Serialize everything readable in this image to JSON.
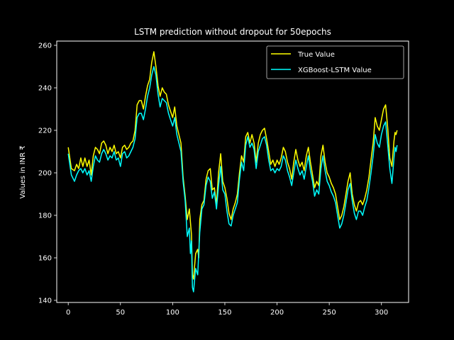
{
  "chart_data": {
    "type": "line",
    "title": "LSTM prediction without dropout for 50epochs",
    "xlabel": "",
    "ylabel": "Values in INR ₹",
    "xlim": [
      -11,
      326
    ],
    "ylim": [
      139,
      262
    ],
    "xticks": [
      0,
      50,
      100,
      150,
      200,
      250,
      300
    ],
    "yticks": [
      140,
      160,
      180,
      200,
      220,
      240,
      260
    ],
    "grid": false,
    "legend_position": "top-right",
    "background": "#000000",
    "axis_color": "#ffffff",
    "series": [
      {
        "name": "True Value",
        "color": "#ffff00",
        "points": [
          [
            0,
            212
          ],
          [
            3,
            202
          ],
          [
            6,
            201
          ],
          [
            8,
            204
          ],
          [
            10,
            202
          ],
          [
            12,
            207
          ],
          [
            14,
            203
          ],
          [
            16,
            207
          ],
          [
            18,
            203
          ],
          [
            20,
            206
          ],
          [
            22,
            199
          ],
          [
            24,
            208
          ],
          [
            26,
            212
          ],
          [
            28,
            211
          ],
          [
            30,
            209
          ],
          [
            32,
            214
          ],
          [
            34,
            215
          ],
          [
            36,
            213
          ],
          [
            38,
            209
          ],
          [
            40,
            212
          ],
          [
            42,
            210
          ],
          [
            44,
            213
          ],
          [
            46,
            209
          ],
          [
            48,
            210
          ],
          [
            50,
            207
          ],
          [
            52,
            212
          ],
          [
            54,
            213
          ],
          [
            56,
            211
          ],
          [
            58,
            212
          ],
          [
            60,
            214
          ],
          [
            62,
            215
          ],
          [
            64,
            220
          ],
          [
            66,
            232
          ],
          [
            68,
            234
          ],
          [
            70,
            234
          ],
          [
            72,
            230
          ],
          [
            74,
            236
          ],
          [
            76,
            241
          ],
          [
            78,
            244
          ],
          [
            80,
            252
          ],
          [
            82,
            257
          ],
          [
            84,
            250
          ],
          [
            86,
            241
          ],
          [
            88,
            236
          ],
          [
            90,
            240
          ],
          [
            92,
            238
          ],
          [
            94,
            237
          ],
          [
            96,
            232
          ],
          [
            98,
            229
          ],
          [
            100,
            226
          ],
          [
            102,
            231
          ],
          [
            104,
            222
          ],
          [
            106,
            218
          ],
          [
            108,
            214
          ],
          [
            110,
            198
          ],
          [
            112,
            189
          ],
          [
            114,
            178
          ],
          [
            116,
            183
          ],
          [
            118,
            171
          ],
          [
            119,
            152
          ],
          [
            120,
            150
          ],
          [
            122,
            162
          ],
          [
            124,
            164
          ],
          [
            125,
            160
          ],
          [
            126,
            178
          ],
          [
            128,
            185
          ],
          [
            130,
            187
          ],
          [
            132,
            197
          ],
          [
            134,
            201
          ],
          [
            136,
            202
          ],
          [
            138,
            192
          ],
          [
            140,
            193
          ],
          [
            142,
            185
          ],
          [
            144,
            200
          ],
          [
            146,
            209
          ],
          [
            148,
            196
          ],
          [
            150,
            193
          ],
          [
            152,
            188
          ],
          [
            154,
            181
          ],
          [
            156,
            178
          ],
          [
            158,
            183
          ],
          [
            160,
            186
          ],
          [
            162,
            190
          ],
          [
            164,
            200
          ],
          [
            166,
            208
          ],
          [
            168,
            205
          ],
          [
            170,
            217
          ],
          [
            172,
            219
          ],
          [
            174,
            214
          ],
          [
            176,
            218
          ],
          [
            178,
            214
          ],
          [
            180,
            205
          ],
          [
            182,
            214
          ],
          [
            184,
            218
          ],
          [
            186,
            220
          ],
          [
            188,
            221
          ],
          [
            190,
            216
          ],
          [
            192,
            210
          ],
          [
            194,
            204
          ],
          [
            196,
            206
          ],
          [
            198,
            203
          ],
          [
            200,
            206
          ],
          [
            202,
            204
          ],
          [
            204,
            207
          ],
          [
            206,
            212
          ],
          [
            208,
            210
          ],
          [
            210,
            205
          ],
          [
            212,
            202
          ],
          [
            214,
            197
          ],
          [
            216,
            205
          ],
          [
            218,
            211
          ],
          [
            220,
            206
          ],
          [
            222,
            203
          ],
          [
            224,
            205
          ],
          [
            226,
            201
          ],
          [
            228,
            208
          ],
          [
            230,
            212
          ],
          [
            232,
            205
          ],
          [
            234,
            199
          ],
          [
            236,
            193
          ],
          [
            238,
            196
          ],
          [
            240,
            194
          ],
          [
            242,
            208
          ],
          [
            244,
            213
          ],
          [
            246,
            205
          ],
          [
            248,
            200
          ],
          [
            250,
            198
          ],
          [
            252,
            195
          ],
          [
            254,
            193
          ],
          [
            256,
            190
          ],
          [
            258,
            184
          ],
          [
            260,
            178
          ],
          [
            262,
            180
          ],
          [
            264,
            184
          ],
          [
            266,
            190
          ],
          [
            268,
            196
          ],
          [
            270,
            200
          ],
          [
            272,
            190
          ],
          [
            274,
            185
          ],
          [
            276,
            182
          ],
          [
            278,
            186
          ],
          [
            280,
            187
          ],
          [
            282,
            185
          ],
          [
            284,
            188
          ],
          [
            286,
            192
          ],
          [
            288,
            198
          ],
          [
            290,
            206
          ],
          [
            292,
            214
          ],
          [
            294,
            226
          ],
          [
            296,
            222
          ],
          [
            298,
            220
          ],
          [
            300,
            225
          ],
          [
            302,
            230
          ],
          [
            304,
            232
          ],
          [
            306,
            221
          ],
          [
            308,
            207
          ],
          [
            310,
            203
          ],
          [
            312,
            215
          ],
          [
            313,
            219
          ],
          [
            314,
            218
          ],
          [
            315,
            220
          ]
        ]
      },
      {
        "name": "XGBoost-LSTM Value",
        "color": "#00ffff",
        "points": [
          [
            0,
            209
          ],
          [
            3,
            199
          ],
          [
            6,
            196
          ],
          [
            8,
            199
          ],
          [
            10,
            201
          ],
          [
            12,
            202
          ],
          [
            14,
            200
          ],
          [
            16,
            202
          ],
          [
            18,
            199
          ],
          [
            20,
            201
          ],
          [
            22,
            196
          ],
          [
            24,
            203
          ],
          [
            26,
            208
          ],
          [
            28,
            206
          ],
          [
            30,
            205
          ],
          [
            32,
            209
          ],
          [
            34,
            211
          ],
          [
            36,
            209
          ],
          [
            38,
            206
          ],
          [
            40,
            208
          ],
          [
            42,
            207
          ],
          [
            44,
            210
          ],
          [
            46,
            206
          ],
          [
            48,
            207
          ],
          [
            50,
            203
          ],
          [
            52,
            209
          ],
          [
            54,
            210
          ],
          [
            56,
            207
          ],
          [
            58,
            208
          ],
          [
            60,
            210
          ],
          [
            62,
            212
          ],
          [
            64,
            216
          ],
          [
            66,
            226
          ],
          [
            68,
            228
          ],
          [
            70,
            228
          ],
          [
            72,
            225
          ],
          [
            74,
            230
          ],
          [
            76,
            236
          ],
          [
            78,
            240
          ],
          [
            80,
            246
          ],
          [
            82,
            250
          ],
          [
            84,
            246
          ],
          [
            86,
            237
          ],
          [
            88,
            231
          ],
          [
            90,
            235
          ],
          [
            92,
            234
          ],
          [
            94,
            233
          ],
          [
            96,
            228
          ],
          [
            98,
            225
          ],
          [
            100,
            222
          ],
          [
            102,
            226
          ],
          [
            104,
            218
          ],
          [
            106,
            214
          ],
          [
            108,
            210
          ],
          [
            110,
            196
          ],
          [
            112,
            187
          ],
          [
            114,
            170
          ],
          [
            116,
            174
          ],
          [
            117,
            162
          ],
          [
            118,
            168
          ],
          [
            119,
            146
          ],
          [
            120,
            144
          ],
          [
            122,
            155
          ],
          [
            124,
            152
          ],
          [
            126,
            172
          ],
          [
            128,
            183
          ],
          [
            130,
            185
          ],
          [
            132,
            194
          ],
          [
            134,
            198
          ],
          [
            136,
            196
          ],
          [
            138,
            188
          ],
          [
            140,
            191
          ],
          [
            142,
            183
          ],
          [
            144,
            194
          ],
          [
            146,
            203
          ],
          [
            148,
            192
          ],
          [
            150,
            190
          ],
          [
            152,
            182
          ],
          [
            154,
            176
          ],
          [
            156,
            175
          ],
          [
            158,
            180
          ],
          [
            160,
            183
          ],
          [
            162,
            186
          ],
          [
            164,
            197
          ],
          [
            166,
            205
          ],
          [
            168,
            201
          ],
          [
            170,
            213
          ],
          [
            172,
            217
          ],
          [
            174,
            212
          ],
          [
            176,
            214
          ],
          [
            178,
            211
          ],
          [
            180,
            202
          ],
          [
            182,
            210
          ],
          [
            184,
            213
          ],
          [
            186,
            216
          ],
          [
            188,
            217
          ],
          [
            190,
            213
          ],
          [
            192,
            206
          ],
          [
            194,
            201
          ],
          [
            196,
            202
          ],
          [
            198,
            200
          ],
          [
            200,
            202
          ],
          [
            202,
            201
          ],
          [
            204,
            203
          ],
          [
            206,
            208
          ],
          [
            208,
            206
          ],
          [
            210,
            201
          ],
          [
            212,
            198
          ],
          [
            214,
            194
          ],
          [
            216,
            200
          ],
          [
            218,
            206
          ],
          [
            220,
            202
          ],
          [
            222,
            199
          ],
          [
            224,
            201
          ],
          [
            226,
            197
          ],
          [
            228,
            203
          ],
          [
            230,
            208
          ],
          [
            232,
            201
          ],
          [
            234,
            196
          ],
          [
            236,
            189
          ],
          [
            238,
            192
          ],
          [
            240,
            190
          ],
          [
            242,
            202
          ],
          [
            244,
            208
          ],
          [
            246,
            201
          ],
          [
            248,
            196
          ],
          [
            250,
            194
          ],
          [
            252,
            191
          ],
          [
            254,
            189
          ],
          [
            256,
            186
          ],
          [
            258,
            180
          ],
          [
            260,
            174
          ],
          [
            262,
            176
          ],
          [
            264,
            180
          ],
          [
            266,
            186
          ],
          [
            268,
            192
          ],
          [
            270,
            195
          ],
          [
            272,
            187
          ],
          [
            274,
            181
          ],
          [
            276,
            178
          ],
          [
            278,
            182
          ],
          [
            280,
            182
          ],
          [
            282,
            180
          ],
          [
            284,
            184
          ],
          [
            286,
            187
          ],
          [
            288,
            193
          ],
          [
            290,
            200
          ],
          [
            292,
            208
          ],
          [
            294,
            218
          ],
          [
            296,
            214
          ],
          [
            298,
            212
          ],
          [
            300,
            218
          ],
          [
            302,
            222
          ],
          [
            304,
            224
          ],
          [
            306,
            213
          ],
          [
            308,
            202
          ],
          [
            310,
            195
          ],
          [
            312,
            207
          ],
          [
            313,
            212
          ],
          [
            314,
            210
          ],
          [
            315,
            213
          ]
        ]
      }
    ]
  }
}
